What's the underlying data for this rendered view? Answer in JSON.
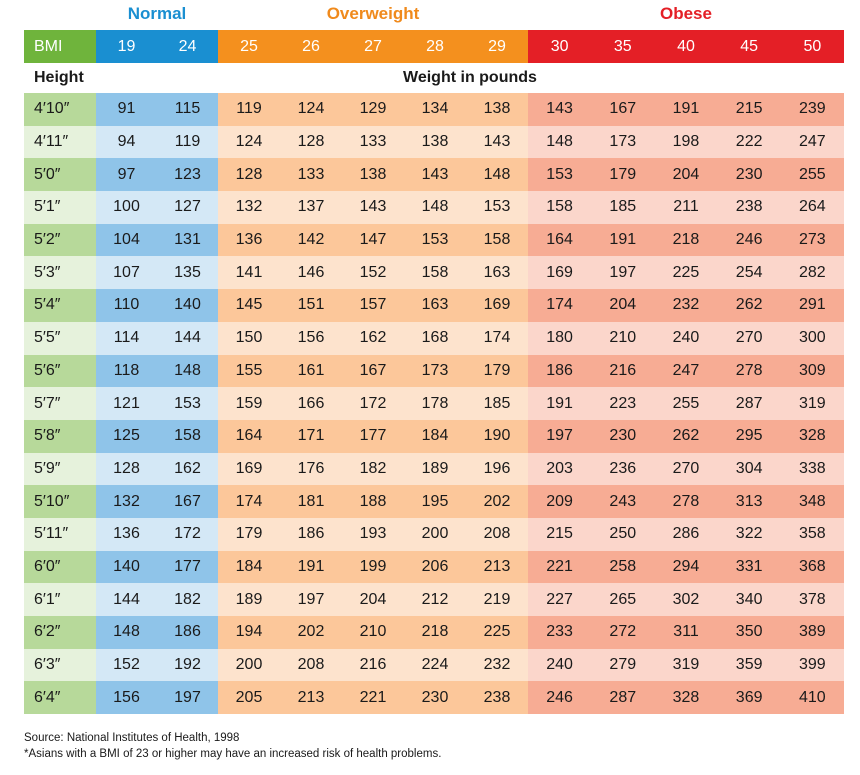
{
  "categories": {
    "normal": "Normal",
    "overweight": "Overweight",
    "obese": "Obese"
  },
  "colors": {
    "normal": "#1a8fd1",
    "overweight": "#f4901e",
    "obese": "#e41f26",
    "bmi_label": "#6fb43c"
  },
  "table": {
    "bmi_label": "BMI",
    "bmi_values": [
      "19",
      "24",
      "25",
      "26",
      "27",
      "28",
      "29",
      "30",
      "35",
      "40",
      "45",
      "50"
    ],
    "height_label": "Height",
    "weight_label": "Weight in pounds",
    "rows": [
      {
        "height": "4′10″",
        "weights": [
          "91",
          "115",
          "119",
          "124",
          "129",
          "134",
          "138",
          "143",
          "167",
          "191",
          "215",
          "239"
        ]
      },
      {
        "height": "4′11″",
        "weights": [
          "94",
          "119",
          "124",
          "128",
          "133",
          "138",
          "143",
          "148",
          "173",
          "198",
          "222",
          "247"
        ]
      },
      {
        "height": "5′0″",
        "weights": [
          "97",
          "123",
          "128",
          "133",
          "138",
          "143",
          "148",
          "153",
          "179",
          "204",
          "230",
          "255"
        ]
      },
      {
        "height": "5′1″",
        "weights": [
          "100",
          "127",
          "132",
          "137",
          "143",
          "148",
          "153",
          "158",
          "185",
          "211",
          "238",
          "264"
        ]
      },
      {
        "height": "5′2″",
        "weights": [
          "104",
          "131",
          "136",
          "142",
          "147",
          "153",
          "158",
          "164",
          "191",
          "218",
          "246",
          "273"
        ]
      },
      {
        "height": "5′3″",
        "weights": [
          "107",
          "135",
          "141",
          "146",
          "152",
          "158",
          "163",
          "169",
          "197",
          "225",
          "254",
          "282"
        ]
      },
      {
        "height": "5′4″",
        "weights": [
          "110",
          "140",
          "145",
          "151",
          "157",
          "163",
          "169",
          "174",
          "204",
          "232",
          "262",
          "291"
        ]
      },
      {
        "height": "5′5″",
        "weights": [
          "114",
          "144",
          "150",
          "156",
          "162",
          "168",
          "174",
          "180",
          "210",
          "240",
          "270",
          "300"
        ]
      },
      {
        "height": "5′6″",
        "weights": [
          "118",
          "148",
          "155",
          "161",
          "167",
          "173",
          "179",
          "186",
          "216",
          "247",
          "278",
          "309"
        ]
      },
      {
        "height": "5′7″",
        "weights": [
          "121",
          "153",
          "159",
          "166",
          "172",
          "178",
          "185",
          "191",
          "223",
          "255",
          "287",
          "319"
        ]
      },
      {
        "height": "5′8″",
        "weights": [
          "125",
          "158",
          "164",
          "171",
          "177",
          "184",
          "190",
          "197",
          "230",
          "262",
          "295",
          "328"
        ]
      },
      {
        "height": "5′9″",
        "weights": [
          "128",
          "162",
          "169",
          "176",
          "182",
          "189",
          "196",
          "203",
          "236",
          "270",
          "304",
          "338"
        ]
      },
      {
        "height": "5′10″",
        "weights": [
          "132",
          "167",
          "174",
          "181",
          "188",
          "195",
          "202",
          "209",
          "243",
          "278",
          "313",
          "348"
        ]
      },
      {
        "height": "5′11″",
        "weights": [
          "136",
          "172",
          "179",
          "186",
          "193",
          "200",
          "208",
          "215",
          "250",
          "286",
          "322",
          "358"
        ]
      },
      {
        "height": "6′0″",
        "weights": [
          "140",
          "177",
          "184",
          "191",
          "199",
          "206",
          "213",
          "221",
          "258",
          "294",
          "331",
          "368"
        ]
      },
      {
        "height": "6′1″",
        "weights": [
          "144",
          "182",
          "189",
          "197",
          "204",
          "212",
          "219",
          "227",
          "265",
          "302",
          "340",
          "378"
        ]
      },
      {
        "height": "6′2″",
        "weights": [
          "148",
          "186",
          "194",
          "202",
          "210",
          "218",
          "225",
          "233",
          "272",
          "311",
          "350",
          "389"
        ]
      },
      {
        "height": "6′3″",
        "weights": [
          "152",
          "192",
          "200",
          "208",
          "216",
          "224",
          "232",
          "240",
          "279",
          "319",
          "359",
          "399"
        ]
      },
      {
        "height": "6′4″",
        "weights": [
          "156",
          "197",
          "205",
          "213",
          "221",
          "230",
          "238",
          "246",
          "287",
          "328",
          "369",
          "410"
        ]
      }
    ]
  },
  "footnotes": {
    "source": "Source: National Institutes of Health, 1998",
    "asian_note": "*Asians with a BMI of 23 or higher may have an increased risk of health problems."
  }
}
